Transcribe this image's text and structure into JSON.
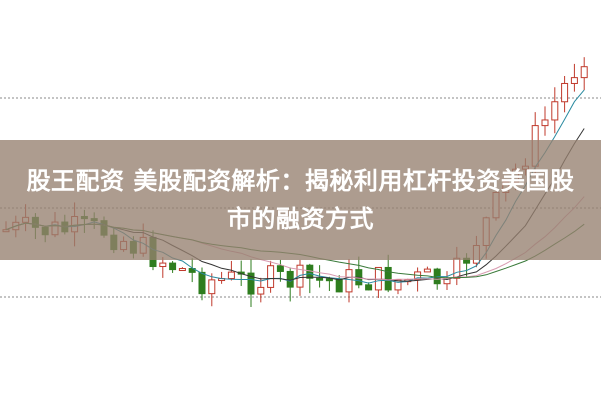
{
  "article": {
    "title": "股王配资 美股配资解析：揭秘利用杠杆投资美国股市的融资方式"
  },
  "colors": {
    "up_candle": "#c0392b",
    "down_candle": "#2e7d1e",
    "banner": "#9a8474",
    "ma_dark": "#333333",
    "ma_pink": "#d89ab0",
    "ma_green": "#3a7a3a",
    "ma_teal": "#2a8aa0"
  }
}
